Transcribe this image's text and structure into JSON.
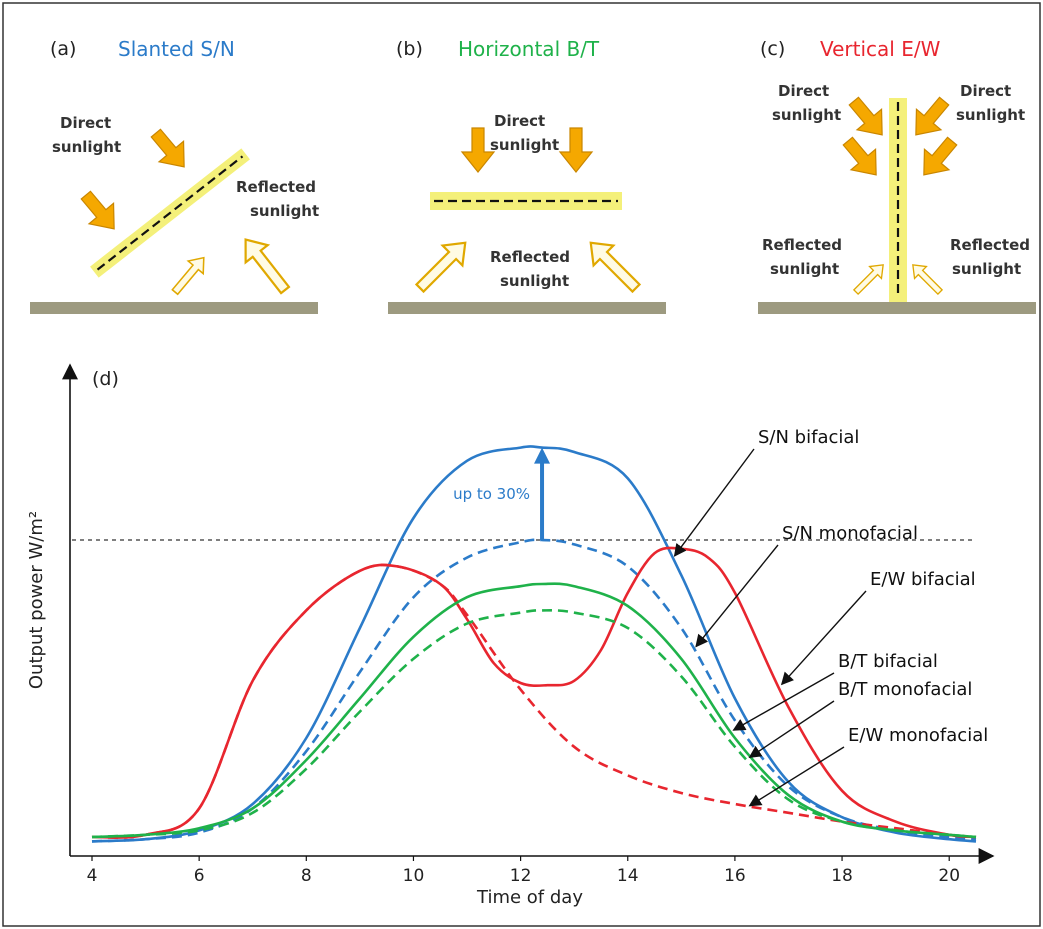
{
  "colors": {
    "blue": "#2b7bc9",
    "green": "#1fb24a",
    "red": "#e8262f",
    "arrow_fill": "#f5a800",
    "panel_yellow": "#f4f07a",
    "ground": "#9d9a80"
  },
  "panels": [
    {
      "letter": "(a)",
      "title": "Slanted S/N",
      "title_color": "#2b7bc9",
      "labels": {
        "direct_1": "Direct",
        "direct_2": "sunlight",
        "reflected_1": "Reflected",
        "reflected_2": "sunlight"
      }
    },
    {
      "letter": "(b)",
      "title": "Horizontal B/T",
      "title_color": "#1fb24a",
      "labels": {
        "direct_1": "Direct",
        "direct_2": "sunlight",
        "reflected_1": "Reflected",
        "reflected_2": "sunlight"
      }
    },
    {
      "letter": "(c)",
      "title": "Vertical E/W",
      "title_color": "#e8262f",
      "labels": {
        "direct_left_1": "Direct",
        "direct_left_2": "sunlight",
        "direct_right_1": "Direct",
        "direct_right_2": "sunlight",
        "reflected_left_1": "Reflected",
        "reflected_left_2": "sunlight",
        "reflected_right_1": "Reflected",
        "reflected_right_2": "sunlight"
      }
    }
  ],
  "chart_data": {
    "type": "line",
    "panel_letter": "(d)",
    "xlabel": "Time of day",
    "ylabel": "Output power W/m²",
    "xlim": [
      4,
      20.5
    ],
    "ylim": [
      0,
      1
    ],
    "xticks": [
      4,
      6,
      8,
      10,
      12,
      14,
      16,
      18,
      20
    ],
    "y_ticks_shown": false,
    "reference_line": {
      "y": 0.7,
      "style": "dashed",
      "color": "#333333"
    },
    "increase_annotation": {
      "text": "up to 30%",
      "x": 12.4,
      "from": 0.7,
      "to": 0.91,
      "color": "#2b7bc9"
    },
    "series": [
      {
        "name": "S/N bifacial",
        "color": "#2b7bc9",
        "dash": false,
        "x": [
          4,
          5,
          6,
          7,
          8,
          9,
          10,
          11,
          12,
          12.4,
          13,
          14,
          15,
          16,
          17,
          18,
          19,
          20,
          20.5
        ],
        "y": [
          0.015,
          0.02,
          0.04,
          0.1,
          0.25,
          0.5,
          0.75,
          0.88,
          0.91,
          0.91,
          0.9,
          0.84,
          0.62,
          0.34,
          0.15,
          0.07,
          0.035,
          0.02,
          0.015
        ]
      },
      {
        "name": "S/N monofacial",
        "color": "#2b7bc9",
        "dash": true,
        "x": [
          4,
          5,
          6,
          7,
          8,
          9,
          10,
          11,
          12,
          12.4,
          13,
          14,
          15,
          16,
          17,
          18,
          19,
          20,
          20.5
        ],
        "y": [
          0.015,
          0.02,
          0.035,
          0.09,
          0.22,
          0.4,
          0.57,
          0.66,
          0.695,
          0.7,
          0.69,
          0.64,
          0.5,
          0.29,
          0.14,
          0.07,
          0.04,
          0.025,
          0.02
        ]
      },
      {
        "name": "E/W bifacial",
        "color": "#e8262f",
        "dash": false,
        "x": [
          4,
          5,
          6,
          7,
          8,
          9,
          9.7,
          10.5,
          11,
          11.5,
          12,
          12.5,
          13,
          13.5,
          14,
          14.5,
          15,
          15.5,
          16,
          17,
          18,
          19,
          20,
          20.5
        ],
        "y": [
          0.025,
          0.03,
          0.09,
          0.38,
          0.54,
          0.63,
          0.64,
          0.6,
          0.52,
          0.42,
          0.375,
          0.37,
          0.38,
          0.45,
          0.58,
          0.67,
          0.68,
          0.66,
          0.58,
          0.32,
          0.13,
          0.06,
          0.03,
          0.025
        ]
      },
      {
        "name": "E/W monofacial",
        "color": "#e8262f",
        "dash": true,
        "x": [
          4,
          5,
          6,
          7,
          8,
          9,
          9.7,
          10.5,
          11,
          12,
          13,
          14,
          15,
          16,
          17,
          18,
          19,
          20,
          20.5
        ],
        "y": [
          0.025,
          0.03,
          0.09,
          0.38,
          0.54,
          0.63,
          0.64,
          0.6,
          0.53,
          0.36,
          0.23,
          0.165,
          0.125,
          0.1,
          0.08,
          0.06,
          0.045,
          0.03,
          0.025
        ]
      },
      {
        "name": "B/T bifacial",
        "color": "#1fb24a",
        "dash": false,
        "x": [
          4,
          5,
          6,
          7,
          8,
          9,
          10,
          11,
          12,
          12.4,
          13,
          14,
          15,
          16,
          17,
          18,
          19,
          20,
          20.5
        ],
        "y": [
          0.025,
          0.03,
          0.045,
          0.09,
          0.2,
          0.34,
          0.48,
          0.57,
          0.595,
          0.6,
          0.595,
          0.55,
          0.43,
          0.25,
          0.12,
          0.06,
          0.04,
          0.03,
          0.025
        ]
      },
      {
        "name": "B/T monofacial",
        "color": "#1fb24a",
        "dash": true,
        "x": [
          4,
          5,
          6,
          7,
          8,
          9,
          10,
          11,
          12,
          12.4,
          13,
          14,
          15,
          16,
          17,
          18,
          19,
          20,
          20.5
        ],
        "y": [
          0.025,
          0.03,
          0.04,
          0.08,
          0.18,
          0.31,
          0.43,
          0.51,
          0.535,
          0.54,
          0.535,
          0.5,
          0.39,
          0.23,
          0.11,
          0.06,
          0.04,
          0.03,
          0.025
        ]
      }
    ],
    "annotations": [
      {
        "text": "S/N bifacial",
        "series": "S/N bifacial",
        "x": 14.8
      },
      {
        "text": "S/N monofacial",
        "series": "S/N monofacial",
        "x": 15.2
      },
      {
        "text": "E/W bifacial",
        "series": "E/W bifacial",
        "x": 16.8
      },
      {
        "text": "B/T bifacial",
        "series": "B/T bifacial",
        "x": 15.9
      },
      {
        "text": "B/T monofacial",
        "series": "B/T monofacial",
        "x": 16.2
      },
      {
        "text": "E/W monofacial",
        "series": "E/W monofacial",
        "x": 16.2
      }
    ]
  }
}
